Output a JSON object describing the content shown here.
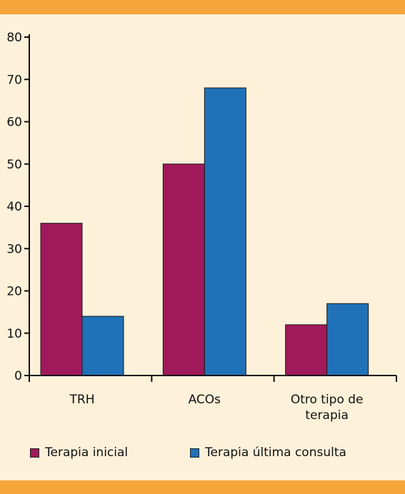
{
  "colors": {
    "background": "#fdf1da",
    "band": "#f6a53a",
    "series_1": "#a0195a",
    "series_2": "#1f72b8",
    "axis": "#111111"
  },
  "legend": {
    "items": [
      {
        "label": "Terapia inicial",
        "color": "#a0195a"
      },
      {
        "label": "Terapia última consulta",
        "color": "#1f72b8"
      }
    ]
  },
  "chart_data": {
    "type": "bar",
    "title": "",
    "xlabel": "",
    "ylabel": "",
    "ylim": [
      0,
      80
    ],
    "yticks": [
      0,
      10,
      20,
      30,
      40,
      50,
      60,
      70,
      80
    ],
    "grid": false,
    "legend_position": "bottom",
    "categories": [
      [
        "TRH"
      ],
      [
        "ACOs"
      ],
      [
        "Otro tipo de",
        "terapia"
      ]
    ],
    "series": [
      {
        "name": "Terapia inicial",
        "color": "#a0195a",
        "values": [
          36,
          50,
          12
        ]
      },
      {
        "name": "Terapia última consulta",
        "color": "#1f72b8",
        "values": [
          14,
          68,
          17
        ]
      }
    ]
  }
}
